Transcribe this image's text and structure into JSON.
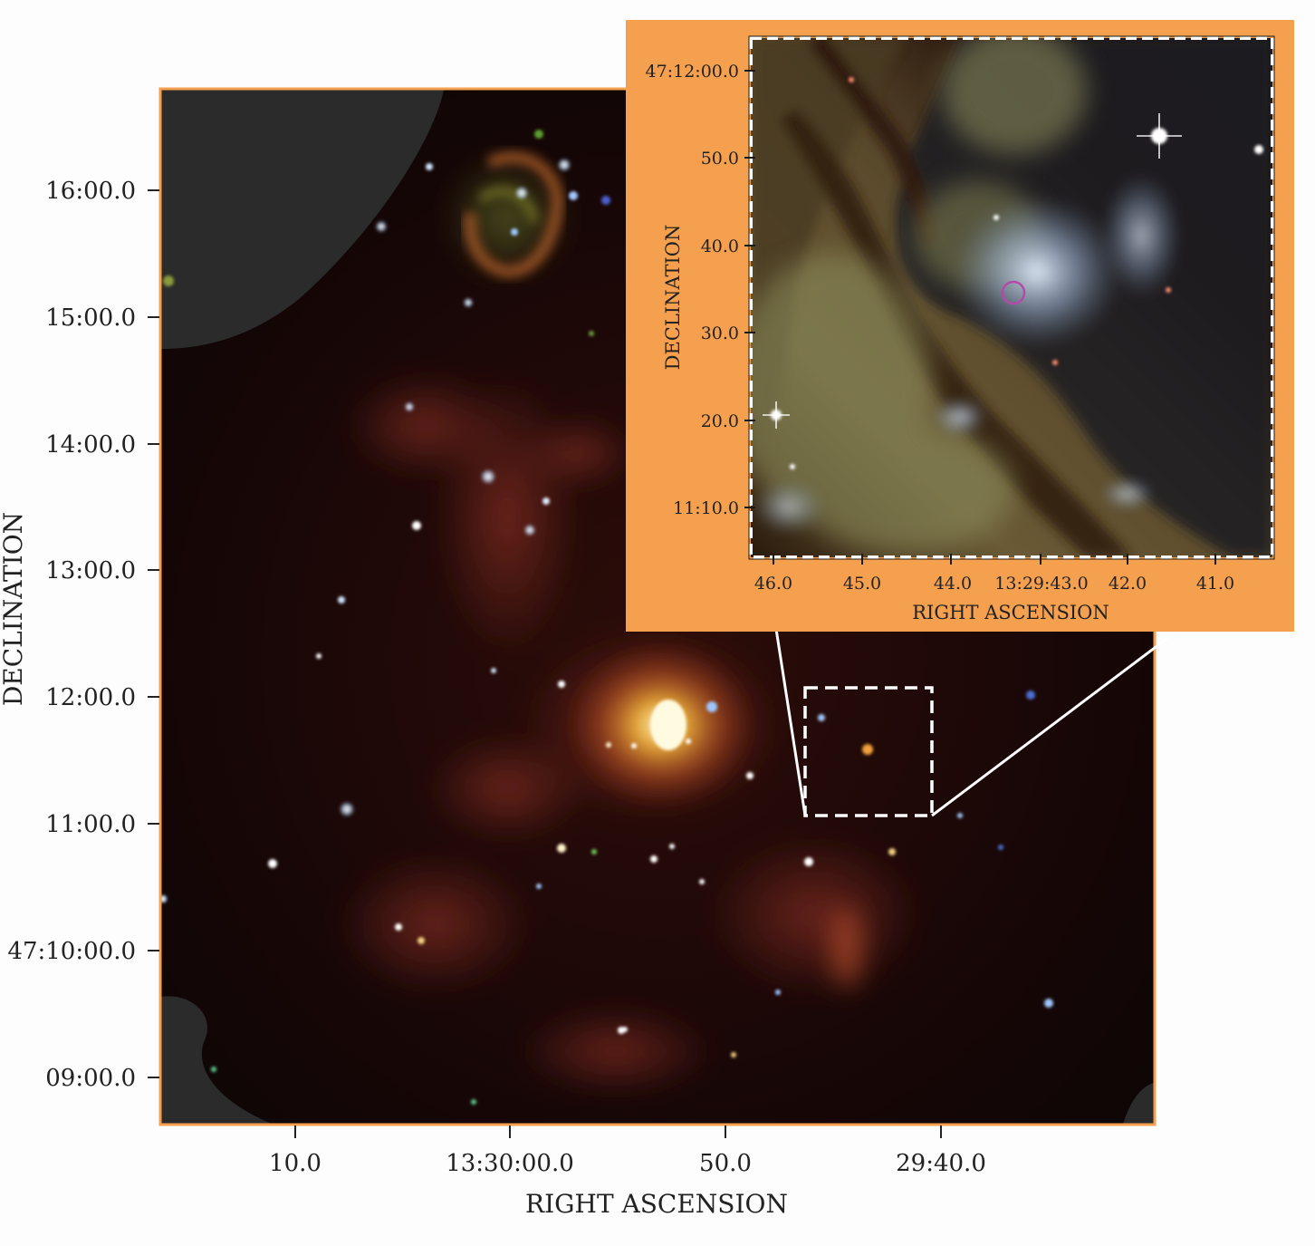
{
  "main_panel": {
    "x_axis_label": "RIGHT ASCENSION",
    "y_axis_label": "DECLINATION",
    "x_ticks": [
      "10.0",
      "13:30:00.0",
      "50.0",
      "29:40.0"
    ],
    "y_ticks": [
      "16:00.0",
      "15:00.0",
      "14:00.0",
      "13:00.0",
      "12:00.0",
      "11:00.0",
      "47:10:00.0",
      "09:00.0"
    ]
  },
  "inset_panel": {
    "x_axis_label": "RIGHT ASCENSION",
    "y_axis_label": "DECLINATION",
    "x_ticks": [
      "46.0",
      "45.0",
      "44.0",
      "13:29:43.0",
      "42.0",
      "41.0"
    ],
    "y_ticks": [
      "47:12:00.0",
      "50.0",
      "40.0",
      "30.0",
      "20.0",
      "11:10.0"
    ]
  },
  "colors": {
    "frame_orange": "#f5a04e",
    "inset_background": "#f5a04e",
    "main_sky": "#120606",
    "no_coverage": "#2b2b2b",
    "highlight_circle": "#b34aa8",
    "zoom_lines": "#ffffff"
  }
}
